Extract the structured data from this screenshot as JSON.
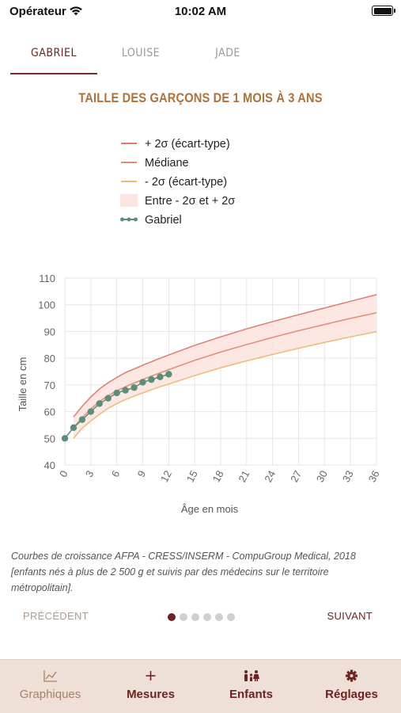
{
  "status_bar": {
    "carrier": "Opérateur",
    "time": "10:02 AM"
  },
  "tabs": [
    {
      "label": "GABRIEL",
      "active": true
    },
    {
      "label": "LOUISE",
      "active": false
    },
    {
      "label": "JADE",
      "active": false
    }
  ],
  "chart_title": "TAILLE DES GARÇONS DE 1 MOIS À 3 ANS",
  "legend": [
    {
      "label": "+ 2σ (écart-type)",
      "color": "#e07a6e"
    },
    {
      "label": "Médiane",
      "color": "#e08d74"
    },
    {
      "label": "- 2σ (écart-type)",
      "color": "#f0b872"
    },
    {
      "label": "Entre - 2σ et + 2σ",
      "color": "#fbe3de"
    },
    {
      "label": "Gabriel",
      "color": "#5a8e78"
    }
  ],
  "chart_data": {
    "type": "line",
    "xlabel": "Âge en mois",
    "ylabel": "Taille en cm",
    "xlim": [
      0,
      36
    ],
    "ylim": [
      40,
      110
    ],
    "xticks": [
      0,
      3,
      6,
      9,
      12,
      15,
      18,
      21,
      24,
      27,
      30,
      33,
      36
    ],
    "yticks": [
      40,
      50,
      60,
      70,
      80,
      90,
      100,
      110
    ],
    "grid": true,
    "series": [
      {
        "name": "+ 2σ (écart-type)",
        "color": "#e07a6e",
        "x": [
          1,
          2,
          3,
          4,
          5,
          6,
          7,
          8,
          9,
          10,
          11,
          12,
          15,
          18,
          21,
          24,
          27,
          30,
          33,
          36
        ],
        "y": [
          58,
          62,
          65.5,
          68.5,
          70.8,
          72.8,
          74.6,
          76,
          77.4,
          78.7,
          80,
          81.2,
          84.8,
          88,
          91,
          93.7,
          96.3,
          98.8,
          101.3,
          103.8
        ]
      },
      {
        "name": "Médiane",
        "color": "#e08d74",
        "x": [
          1,
          2,
          3,
          4,
          5,
          6,
          7,
          8,
          9,
          10,
          11,
          12,
          15,
          18,
          21,
          24,
          27,
          30,
          33,
          36
        ],
        "y": [
          54,
          57.8,
          61,
          63.8,
          66,
          67.8,
          69.3,
          70.7,
          72,
          73.3,
          74.5,
          75.7,
          79.2,
          82.3,
          85.1,
          87.8,
          90.3,
          92.6,
          94.9,
          97
        ]
      },
      {
        "name": "- 2σ (écart-type)",
        "color": "#f0b872",
        "x": [
          1,
          2,
          3,
          4,
          5,
          6,
          7,
          8,
          9,
          10,
          11,
          12,
          15,
          18,
          21,
          24,
          27,
          30,
          33,
          36
        ],
        "y": [
          50,
          53.8,
          56.5,
          59,
          61.2,
          63,
          64.5,
          65.8,
          67,
          68.2,
          69.3,
          70.3,
          73.5,
          76.4,
          79,
          81.4,
          83.7,
          85.9,
          88,
          89.9
        ]
      },
      {
        "name": "Gabriel",
        "color": "#5a8e78",
        "x": [
          0,
          1,
          2,
          3,
          4,
          5,
          6,
          7,
          8,
          9,
          10,
          11,
          12
        ],
        "y": [
          50,
          54,
          57,
          60,
          63,
          65,
          67,
          68,
          69,
          71,
          72,
          73,
          74
        ]
      }
    ]
  },
  "source_text": "Courbes de croissance AFPA - CRESS/INSERM - CompuGroup Medical, 2018 [enfants nés à plus de 2 500 g et suivis par des médecins sur le territoire métropolitain].",
  "pager": {
    "prev_label": "PRÉCÉDENT",
    "next_label": "SUIVANT",
    "page_count": 6,
    "current_page": 1
  },
  "tabbar": [
    {
      "label": "Graphiques",
      "icon": "chart-icon",
      "active": true
    },
    {
      "label": "Mesures",
      "icon": "plus-icon",
      "active": false
    },
    {
      "label": "Enfants",
      "icon": "family-icon",
      "active": false
    },
    {
      "label": "Réglages",
      "icon": "gear-icon",
      "active": false
    }
  ]
}
